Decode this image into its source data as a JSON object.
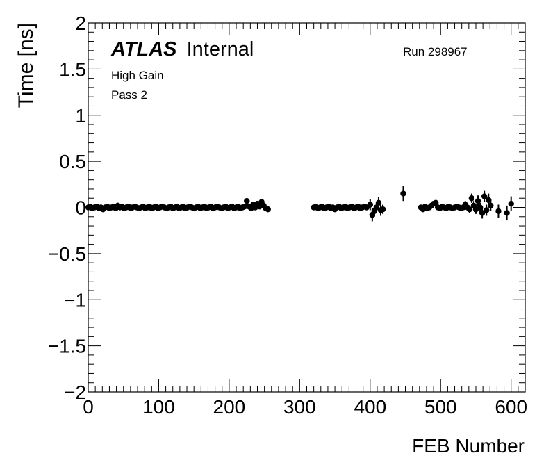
{
  "chart_data": {
    "type": "scatter",
    "title": "",
    "xlabel": "FEB Number",
    "ylabel": "Time [ns]",
    "xlim": [
      0,
      620
    ],
    "ylim": [
      -2,
      2
    ],
    "x_ticks": [
      0,
      100,
      200,
      300,
      400,
      500,
      600
    ],
    "x_tick_labels": [
      "0",
      "100",
      "200",
      "300",
      "400",
      "500",
      "600"
    ],
    "y_ticks": [
      -2,
      -1.5,
      -1,
      -0.5,
      0,
      0.5,
      1,
      1.5,
      2
    ],
    "y_tick_labels": [
      "−2",
      "−1.5",
      "−1",
      "−0.5",
      "0",
      "0.5",
      "1",
      "1.5",
      "2"
    ],
    "grid": false,
    "series": [
      {
        "points": [
          {
            "x": 0,
            "y": 0.0,
            "err": 0.03
          },
          {
            "x": 3,
            "y": 0.01,
            "err": 0.03
          },
          {
            "x": 6,
            "y": -0.01,
            "err": 0.03
          },
          {
            "x": 9,
            "y": 0.0,
            "err": 0.03
          },
          {
            "x": 12,
            "y": 0.01,
            "err": 0.03
          },
          {
            "x": 15,
            "y": -0.01,
            "err": 0.03
          },
          {
            "x": 18,
            "y": 0.0,
            "err": 0.03
          },
          {
            "x": 21,
            "y": -0.02,
            "err": 0.03
          },
          {
            "x": 24,
            "y": 0.0,
            "err": 0.03
          },
          {
            "x": 27,
            "y": 0.01,
            "err": 0.03
          },
          {
            "x": 30,
            "y": -0.01,
            "err": 0.03
          },
          {
            "x": 33,
            "y": 0.0,
            "err": 0.03
          },
          {
            "x": 36,
            "y": 0.01,
            "err": 0.03
          },
          {
            "x": 39,
            "y": -0.01,
            "err": 0.03
          },
          {
            "x": 42,
            "y": 0.02,
            "err": 0.03
          },
          {
            "x": 45,
            "y": 0.0,
            "err": 0.03
          },
          {
            "x": 48,
            "y": 0.01,
            "err": 0.03
          },
          {
            "x": 51,
            "y": -0.01,
            "err": 0.03
          },
          {
            "x": 54,
            "y": 0.0,
            "err": 0.03
          },
          {
            "x": 57,
            "y": 0.01,
            "err": 0.03
          },
          {
            "x": 60,
            "y": -0.01,
            "err": 0.03
          },
          {
            "x": 63,
            "y": 0.0,
            "err": 0.03
          },
          {
            "x": 66,
            "y": 0.01,
            "err": 0.03
          },
          {
            "x": 69,
            "y": 0.0,
            "err": 0.03
          },
          {
            "x": 72,
            "y": -0.01,
            "err": 0.03
          },
          {
            "x": 75,
            "y": 0.0,
            "err": 0.03
          },
          {
            "x": 78,
            "y": 0.01,
            "err": 0.03
          },
          {
            "x": 81,
            "y": -0.01,
            "err": 0.03
          },
          {
            "x": 84,
            "y": 0.0,
            "err": 0.03
          },
          {
            "x": 87,
            "y": 0.01,
            "err": 0.03
          },
          {
            "x": 90,
            "y": -0.01,
            "err": 0.03
          },
          {
            "x": 93,
            "y": 0.0,
            "err": 0.03
          },
          {
            "x": 96,
            "y": 0.01,
            "err": 0.03
          },
          {
            "x": 99,
            "y": -0.01,
            "err": 0.03
          },
          {
            "x": 102,
            "y": 0.0,
            "err": 0.03
          },
          {
            "x": 105,
            "y": 0.01,
            "err": 0.03
          },
          {
            "x": 108,
            "y": 0.0,
            "err": 0.03
          },
          {
            "x": 111,
            "y": -0.01,
            "err": 0.03
          },
          {
            "x": 114,
            "y": 0.0,
            "err": 0.03
          },
          {
            "x": 117,
            "y": 0.01,
            "err": 0.03
          },
          {
            "x": 120,
            "y": -0.01,
            "err": 0.03
          },
          {
            "x": 123,
            "y": 0.0,
            "err": 0.03
          },
          {
            "x": 126,
            "y": 0.01,
            "err": 0.03
          },
          {
            "x": 129,
            "y": -0.01,
            "err": 0.03
          },
          {
            "x": 132,
            "y": 0.0,
            "err": 0.03
          },
          {
            "x": 135,
            "y": 0.01,
            "err": 0.03
          },
          {
            "x": 138,
            "y": -0.01,
            "err": 0.03
          },
          {
            "x": 141,
            "y": 0.0,
            "err": 0.03
          },
          {
            "x": 144,
            "y": 0.01,
            "err": 0.03
          },
          {
            "x": 147,
            "y": 0.0,
            "err": 0.03
          },
          {
            "x": 150,
            "y": -0.01,
            "err": 0.03
          },
          {
            "x": 153,
            "y": 0.0,
            "err": 0.03
          },
          {
            "x": 156,
            "y": 0.01,
            "err": 0.03
          },
          {
            "x": 159,
            "y": -0.01,
            "err": 0.03
          },
          {
            "x": 162,
            "y": 0.0,
            "err": 0.03
          },
          {
            "x": 165,
            "y": 0.01,
            "err": 0.03
          },
          {
            "x": 168,
            "y": -0.01,
            "err": 0.03
          },
          {
            "x": 171,
            "y": 0.0,
            "err": 0.03
          },
          {
            "x": 174,
            "y": 0.01,
            "err": 0.03
          },
          {
            "x": 177,
            "y": -0.01,
            "err": 0.03
          },
          {
            "x": 180,
            "y": 0.0,
            "err": 0.03
          },
          {
            "x": 183,
            "y": 0.01,
            "err": 0.03
          },
          {
            "x": 186,
            "y": 0.0,
            "err": 0.03
          },
          {
            "x": 189,
            "y": -0.01,
            "err": 0.03
          },
          {
            "x": 192,
            "y": 0.0,
            "err": 0.03
          },
          {
            "x": 195,
            "y": 0.01,
            "err": 0.03
          },
          {
            "x": 198,
            "y": -0.01,
            "err": 0.03
          },
          {
            "x": 201,
            "y": 0.0,
            "err": 0.03
          },
          {
            "x": 204,
            "y": 0.01,
            "err": 0.03
          },
          {
            "x": 207,
            "y": -0.01,
            "err": 0.03
          },
          {
            "x": 210,
            "y": 0.0,
            "err": 0.03
          },
          {
            "x": 213,
            "y": 0.01,
            "err": 0.03
          },
          {
            "x": 216,
            "y": -0.01,
            "err": 0.03
          },
          {
            "x": 219,
            "y": 0.0,
            "err": 0.03
          },
          {
            "x": 222,
            "y": 0.01,
            "err": 0.03
          },
          {
            "x": 225,
            "y": 0.07,
            "err": 0.03
          },
          {
            "x": 228,
            "y": 0.01,
            "err": 0.03
          },
          {
            "x": 231,
            "y": -0.01,
            "err": 0.03
          },
          {
            "x": 234,
            "y": 0.03,
            "err": 0.03
          },
          {
            "x": 237,
            "y": 0.0,
            "err": 0.03
          },
          {
            "x": 240,
            "y": 0.04,
            "err": 0.03
          },
          {
            "x": 243,
            "y": 0.01,
            "err": 0.03
          },
          {
            "x": 246,
            "y": 0.06,
            "err": 0.03
          },
          {
            "x": 249,
            "y": 0.02,
            "err": 0.03
          },
          {
            "x": 252,
            "y": -0.01,
            "err": 0.03
          },
          {
            "x": 255,
            "y": -0.02,
            "err": 0.03
          },
          {
            "x": 320,
            "y": 0.0,
            "err": 0.03
          },
          {
            "x": 323,
            "y": 0.01,
            "err": 0.03
          },
          {
            "x": 326,
            "y": -0.01,
            "err": 0.03
          },
          {
            "x": 329,
            "y": 0.0,
            "err": 0.03
          },
          {
            "x": 332,
            "y": 0.01,
            "err": 0.03
          },
          {
            "x": 335,
            "y": -0.01,
            "err": 0.03
          },
          {
            "x": 338,
            "y": 0.0,
            "err": 0.03
          },
          {
            "x": 341,
            "y": 0.01,
            "err": 0.03
          },
          {
            "x": 344,
            "y": -0.01,
            "err": 0.03
          },
          {
            "x": 347,
            "y": 0.0,
            "err": 0.03
          },
          {
            "x": 350,
            "y": -0.02,
            "err": 0.03
          },
          {
            "x": 353,
            "y": 0.0,
            "err": 0.03
          },
          {
            "x": 356,
            "y": 0.01,
            "err": 0.03
          },
          {
            "x": 359,
            "y": -0.01,
            "err": 0.03
          },
          {
            "x": 362,
            "y": 0.0,
            "err": 0.03
          },
          {
            "x": 365,
            "y": 0.01,
            "err": 0.03
          },
          {
            "x": 368,
            "y": -0.01,
            "err": 0.03
          },
          {
            "x": 371,
            "y": 0.0,
            "err": 0.03
          },
          {
            "x": 374,
            "y": 0.01,
            "err": 0.03
          },
          {
            "x": 377,
            "y": -0.01,
            "err": 0.03
          },
          {
            "x": 380,
            "y": 0.0,
            "err": 0.03
          },
          {
            "x": 383,
            "y": 0.01,
            "err": 0.03
          },
          {
            "x": 386,
            "y": -0.01,
            "err": 0.03
          },
          {
            "x": 389,
            "y": 0.0,
            "err": 0.03
          },
          {
            "x": 392,
            "y": 0.01,
            "err": 0.03
          },
          {
            "x": 395,
            "y": 0.0,
            "err": 0.03
          },
          {
            "x": 400,
            "y": 0.03,
            "err": 0.06
          },
          {
            "x": 403,
            "y": -0.08,
            "err": 0.07
          },
          {
            "x": 406,
            "y": -0.04,
            "err": 0.06
          },
          {
            "x": 409,
            "y": 0.0,
            "err": 0.05
          },
          {
            "x": 412,
            "y": 0.05,
            "err": 0.06
          },
          {
            "x": 415,
            "y": -0.03,
            "err": 0.06
          },
          {
            "x": 418,
            "y": -0.02,
            "err": 0.05
          },
          {
            "x": 447,
            "y": 0.15,
            "err": 0.08
          },
          {
            "x": 472,
            "y": 0.0,
            "err": 0.03
          },
          {
            "x": 475,
            "y": -0.02,
            "err": 0.03
          },
          {
            "x": 478,
            "y": 0.01,
            "err": 0.03
          },
          {
            "x": 481,
            "y": -0.01,
            "err": 0.03
          },
          {
            "x": 484,
            "y": 0.0,
            "err": 0.03
          },
          {
            "x": 487,
            "y": 0.02,
            "err": 0.03
          },
          {
            "x": 490,
            "y": 0.04,
            "err": 0.03
          },
          {
            "x": 493,
            "y": 0.05,
            "err": 0.03
          },
          {
            "x": 496,
            "y": 0.0,
            "err": 0.03
          },
          {
            "x": 499,
            "y": -0.01,
            "err": 0.03
          },
          {
            "x": 502,
            "y": 0.01,
            "err": 0.03
          },
          {
            "x": 505,
            "y": 0.0,
            "err": 0.03
          },
          {
            "x": 508,
            "y": -0.01,
            "err": 0.03
          },
          {
            "x": 511,
            "y": 0.01,
            "err": 0.03
          },
          {
            "x": 514,
            "y": 0.0,
            "err": 0.03
          },
          {
            "x": 517,
            "y": -0.01,
            "err": 0.03
          },
          {
            "x": 520,
            "y": 0.0,
            "err": 0.03
          },
          {
            "x": 523,
            "y": 0.01,
            "err": 0.03
          },
          {
            "x": 526,
            "y": 0.0,
            "err": 0.03
          },
          {
            "x": 529,
            "y": -0.01,
            "err": 0.03
          },
          {
            "x": 532,
            "y": 0.0,
            "err": 0.03
          },
          {
            "x": 535,
            "y": 0.03,
            "err": 0.04
          },
          {
            "x": 538,
            "y": 0.0,
            "err": 0.04
          },
          {
            "x": 541,
            "y": -0.02,
            "err": 0.04
          },
          {
            "x": 544,
            "y": 0.1,
            "err": 0.05
          },
          {
            "x": 547,
            "y": 0.02,
            "err": 0.05
          },
          {
            "x": 550,
            "y": -0.02,
            "err": 0.05
          },
          {
            "x": 553,
            "y": 0.07,
            "err": 0.06
          },
          {
            "x": 556,
            "y": 0.0,
            "err": 0.05
          },
          {
            "x": 559,
            "y": -0.06,
            "err": 0.06
          },
          {
            "x": 562,
            "y": 0.12,
            "err": 0.06
          },
          {
            "x": 565,
            "y": -0.03,
            "err": 0.06
          },
          {
            "x": 568,
            "y": 0.08,
            "err": 0.07
          },
          {
            "x": 571,
            "y": 0.02,
            "err": 0.06
          },
          {
            "x": 582,
            "y": -0.04,
            "err": 0.07
          },
          {
            "x": 594,
            "y": -0.06,
            "err": 0.08
          },
          {
            "x": 600,
            "y": 0.04,
            "err": 0.08
          }
        ]
      }
    ],
    "annotations": {
      "atlas_label": "ATLAS",
      "atlas_suffix": "Internal",
      "run": "Run 298967",
      "gain": "High Gain",
      "pass": "Pass 2"
    },
    "colors": {
      "marker": "#000000",
      "axis": "#000000",
      "background": "#ffffff"
    }
  }
}
